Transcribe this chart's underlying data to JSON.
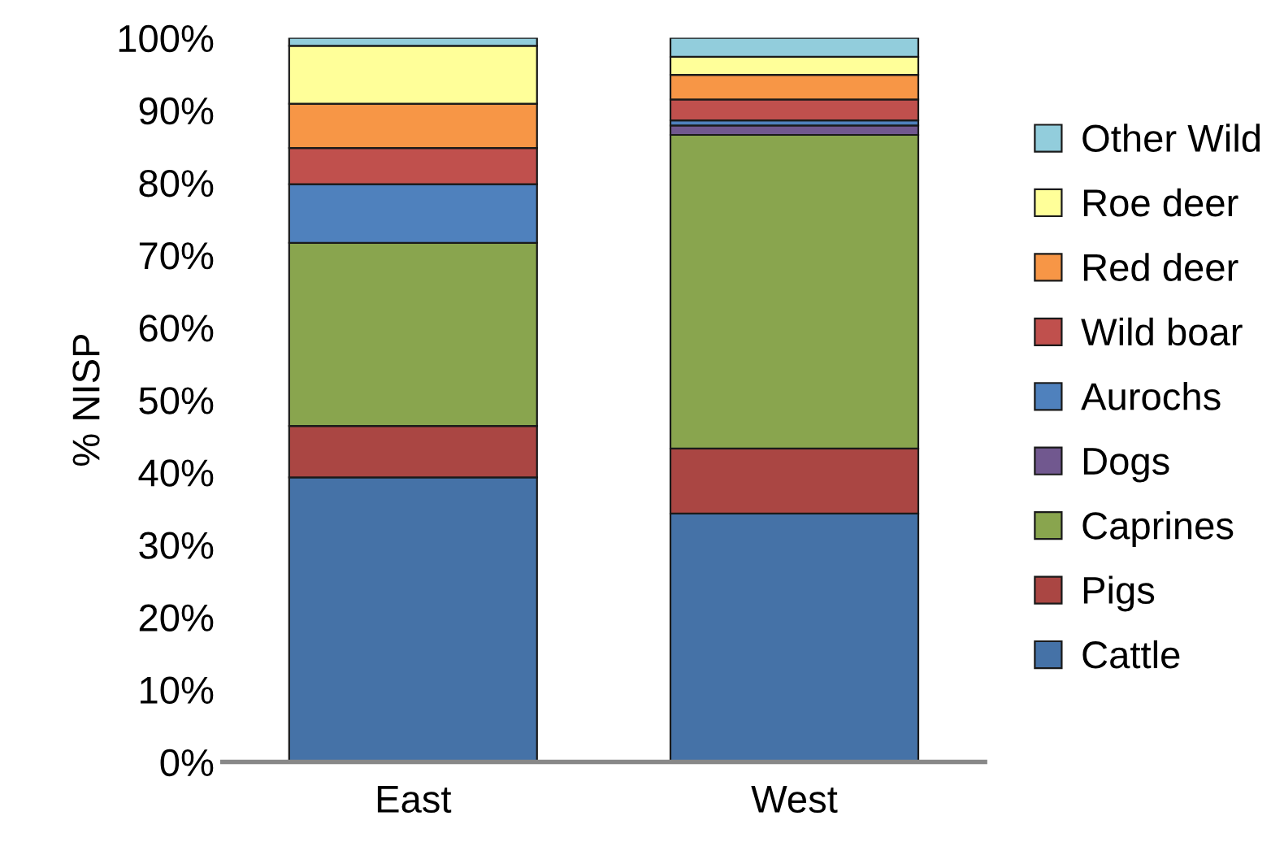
{
  "chart_data": {
    "type": "bar",
    "stacked": true,
    "ylabel": "% NISP",
    "categories": [
      "East",
      "West"
    ],
    "ylim": [
      0,
      100
    ],
    "yticks": [
      {
        "value": 0,
        "label": "0%"
      },
      {
        "value": 10,
        "label": "10%"
      },
      {
        "value": 20,
        "label": "20%"
      },
      {
        "value": 30,
        "label": "30%"
      },
      {
        "value": 40,
        "label": "40%"
      },
      {
        "value": 50,
        "label": "50%"
      },
      {
        "value": 60,
        "label": "60%"
      },
      {
        "value": 70,
        "label": "70%"
      },
      {
        "value": 80,
        "label": "80%"
      },
      {
        "value": 90,
        "label": "90%"
      },
      {
        "value": 100,
        "label": "100%"
      }
    ],
    "grid": false,
    "legend": "right",
    "series": [
      {
        "name": "Cattle",
        "color": "#4572a7",
        "values": [
          39.3,
          34.3
        ]
      },
      {
        "name": "Pigs",
        "color": "#aa4643",
        "values": [
          7.1,
          9.0
        ]
      },
      {
        "name": "Caprines",
        "color": "#89a54e",
        "values": [
          25.3,
          43.3
        ]
      },
      {
        "name": "Dogs",
        "color": "#71588f",
        "values": [
          0,
          1.3
        ]
      },
      {
        "name": "Aurochs",
        "color": "#4f81bd",
        "values": [
          8.1,
          0.7
        ]
      },
      {
        "name": "Wild boar",
        "color": "#c0504d",
        "values": [
          5.0,
          2.9
        ]
      },
      {
        "name": "Red deer",
        "color": "#f79646",
        "values": [
          6.1,
          3.4
        ]
      },
      {
        "name": "Roe deer",
        "color": "#ffff99",
        "values": [
          8.0,
          2.5
        ]
      },
      {
        "name": "Other Wild",
        "color": "#92cddc",
        "values": [
          1.1,
          2.6
        ]
      }
    ]
  }
}
